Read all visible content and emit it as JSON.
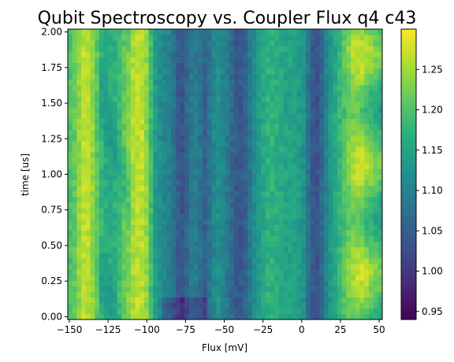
{
  "chart_data": {
    "type": "heatmap",
    "title": "Qubit Spectroscopy vs. Coupler Flux q4 c43",
    "xlabel": "Flux [mV]",
    "ylabel": "time [us]",
    "xlim": [
      -151,
      52
    ],
    "ylim": [
      -0.02,
      2.02
    ],
    "x_ticks": [
      -150,
      -125,
      -100,
      -75,
      -50,
      -25,
      0,
      25,
      50
    ],
    "x_tick_labels": [
      "−150",
      "−125",
      "−100",
      "−75",
      "−50",
      "−25",
      "0",
      "25",
      "50"
    ],
    "y_ticks": [
      0.0,
      0.25,
      0.5,
      0.75,
      1.0,
      1.25,
      1.5,
      1.75,
      2.0
    ],
    "y_tick_labels": [
      "0.00",
      "0.25",
      "0.50",
      "0.75",
      "1.00",
      "1.25",
      "1.50",
      "1.75",
      "2.00"
    ],
    "colormap": "viridis",
    "color_range": [
      0.94,
      1.3
    ],
    "colorbar_ticks": [
      0.95,
      1.0,
      1.05,
      1.1,
      1.15,
      1.2,
      1.25
    ],
    "colorbar_tick_labels": [
      "0.95",
      "1.00",
      "1.05",
      "1.10",
      "1.15",
      "1.20",
      "1.25"
    ],
    "grid": false,
    "legend": "none",
    "flux_profile": {
      "x": [
        -151,
        -147,
        -143,
        -140,
        -137,
        -134,
        -130,
        -125,
        -120,
        -116,
        -112,
        -108,
        -104,
        -100,
        -97,
        -94,
        -90,
        -86,
        -82,
        -78,
        -74,
        -70,
        -66,
        -62,
        -58,
        -54,
        -50,
        -46,
        -42,
        -38,
        -34,
        -30,
        -26,
        -22,
        -18,
        -14,
        -10,
        -6,
        -2,
        2,
        6,
        9,
        12,
        15,
        18,
        22,
        26,
        30,
        34,
        38,
        42,
        46,
        52
      ],
      "values": [
        1.19,
        1.21,
        1.25,
        1.27,
        1.26,
        1.23,
        1.18,
        1.16,
        1.17,
        1.2,
        1.23,
        1.26,
        1.27,
        1.24,
        1.18,
        1.13,
        1.11,
        1.1,
        1.07,
        1.03,
        1.06,
        1.1,
        1.08,
        1.05,
        1.1,
        1.12,
        1.1,
        1.07,
        1.04,
        1.04,
        1.08,
        1.12,
        1.15,
        1.17,
        1.17,
        1.16,
        1.15,
        1.15,
        1.14,
        1.12,
        1.05,
        1.03,
        1.05,
        1.09,
        1.13,
        1.16,
        1.19,
        1.22,
        1.24,
        1.24,
        1.22,
        1.2,
        1.18
      ]
    },
    "grid_cells": {
      "nx": 70,
      "ny": 52
    }
  }
}
